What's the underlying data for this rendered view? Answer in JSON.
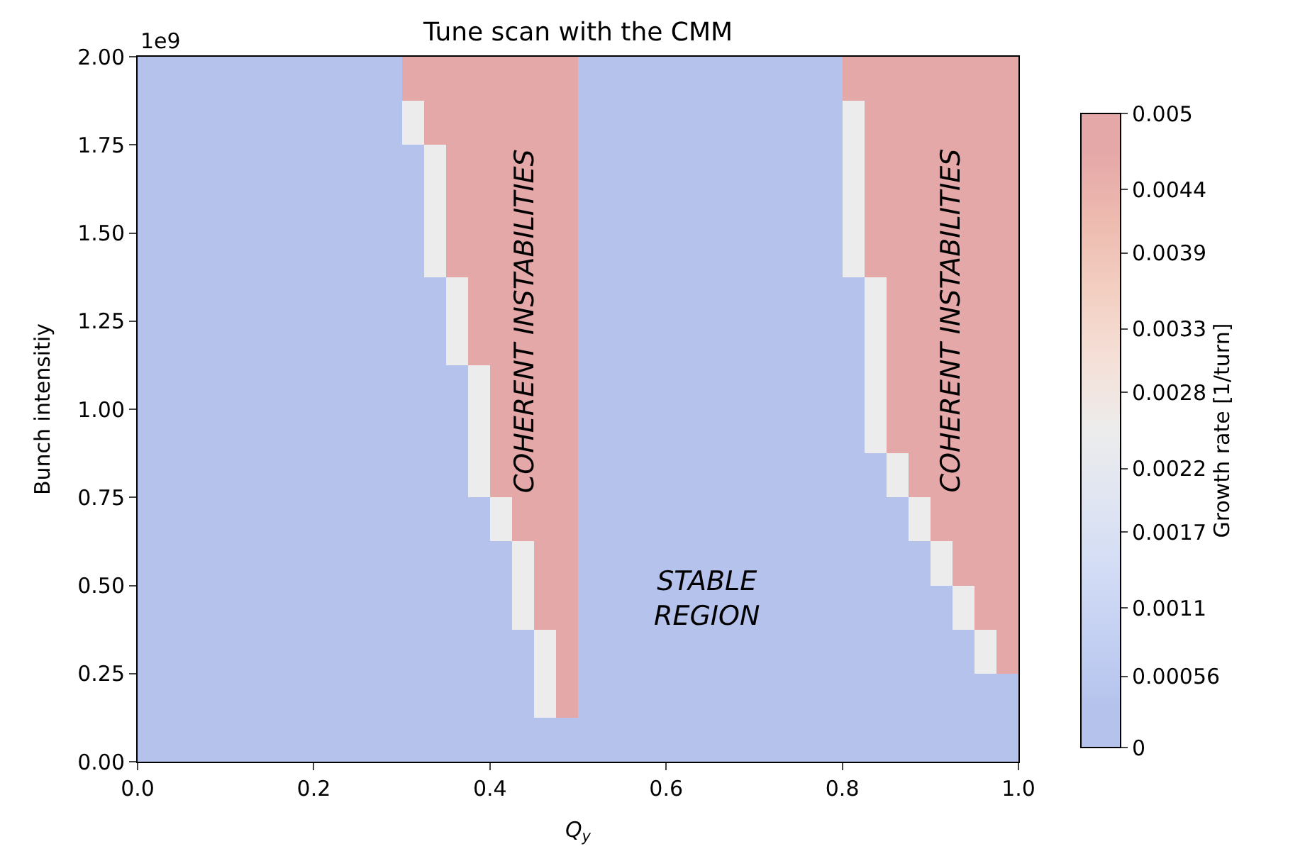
{
  "chart_data": {
    "type": "heatmap",
    "title": "Tune scan with the CMM",
    "xlabel": "Q$_{y}$",
    "ylabel": "Bunch intensitiy",
    "clabel": "Growth rate [1/turn]",
    "x": [
      0.0125,
      0.0375,
      0.0625,
      0.0875,
      0.1125,
      0.1375,
      0.1625,
      0.1875,
      0.2125,
      0.2375,
      0.2625,
      0.2875,
      0.3125,
      0.3375,
      0.3625,
      0.3875,
      0.4125,
      0.4375,
      0.4625,
      0.4875,
      0.5125,
      0.5375,
      0.5625,
      0.5875,
      0.6125,
      0.6375,
      0.6625,
      0.6875,
      0.7125,
      0.7375,
      0.7625,
      0.7875,
      0.8125,
      0.8375,
      0.8625,
      0.8875,
      0.9125,
      0.9375,
      0.9625,
      0.9875
    ],
    "y": [
      1.9375,
      1.8125,
      1.6875,
      1.5625,
      1.4375,
      1.3125,
      1.1875,
      1.0625,
      0.9375,
      0.8125,
      0.6875,
      0.5625,
      0.4375,
      0.3125,
      0.1875,
      0.0625
    ],
    "cells": [
      [
        0.0003,
        0.0003,
        0.0003,
        0.0003,
        0.0003,
        0.0003,
        0.0003,
        0.0003,
        0.0003,
        0.0003,
        0.0003,
        0.0003,
        0.0047,
        0.0047,
        0.0047,
        0.0047,
        0.0047,
        0.0047,
        0.0047,
        0.0047,
        0.0003,
        0.0003,
        0.0003,
        0.0003,
        0.0003,
        0.0003,
        0.0003,
        0.0003,
        0.0003,
        0.0003,
        0.0003,
        0.0003,
        0.0047,
        0.0047,
        0.0047,
        0.0047,
        0.0047,
        0.0047,
        0.0047,
        0.0047
      ],
      [
        0.0003,
        0.0003,
        0.0003,
        0.0003,
        0.0003,
        0.0003,
        0.0003,
        0.0003,
        0.0003,
        0.0003,
        0.0003,
        0.0003,
        0.0025,
        0.0047,
        0.0047,
        0.0047,
        0.0047,
        0.0047,
        0.0047,
        0.0047,
        0.0003,
        0.0003,
        0.0003,
        0.0003,
        0.0003,
        0.0003,
        0.0003,
        0.0003,
        0.0003,
        0.0003,
        0.0003,
        0.0003,
        0.0025,
        0.0047,
        0.0047,
        0.0047,
        0.0047,
        0.0047,
        0.0047,
        0.0047
      ],
      [
        0.0003,
        0.0003,
        0.0003,
        0.0003,
        0.0003,
        0.0003,
        0.0003,
        0.0003,
        0.0003,
        0.0003,
        0.0003,
        0.0003,
        0.0003,
        0.0025,
        0.0047,
        0.0047,
        0.0047,
        0.0047,
        0.0047,
        0.0047,
        0.0003,
        0.0003,
        0.0003,
        0.0003,
        0.0003,
        0.0003,
        0.0003,
        0.0003,
        0.0003,
        0.0003,
        0.0003,
        0.0003,
        0.0025,
        0.0047,
        0.0047,
        0.0047,
        0.0047,
        0.0047,
        0.0047,
        0.0047
      ],
      [
        0.0003,
        0.0003,
        0.0003,
        0.0003,
        0.0003,
        0.0003,
        0.0003,
        0.0003,
        0.0003,
        0.0003,
        0.0003,
        0.0003,
        0.0003,
        0.0025,
        0.0047,
        0.0047,
        0.0047,
        0.0047,
        0.0047,
        0.0047,
        0.0003,
        0.0003,
        0.0003,
        0.0003,
        0.0003,
        0.0003,
        0.0003,
        0.0003,
        0.0003,
        0.0003,
        0.0003,
        0.0003,
        0.0025,
        0.0047,
        0.0047,
        0.0047,
        0.0047,
        0.0047,
        0.0047,
        0.0047
      ],
      [
        0.0003,
        0.0003,
        0.0003,
        0.0003,
        0.0003,
        0.0003,
        0.0003,
        0.0003,
        0.0003,
        0.0003,
        0.0003,
        0.0003,
        0.0003,
        0.0025,
        0.0047,
        0.0047,
        0.0047,
        0.0047,
        0.0047,
        0.0047,
        0.0003,
        0.0003,
        0.0003,
        0.0003,
        0.0003,
        0.0003,
        0.0003,
        0.0003,
        0.0003,
        0.0003,
        0.0003,
        0.0003,
        0.0025,
        0.0047,
        0.0047,
        0.0047,
        0.0047,
        0.0047,
        0.0047,
        0.0047
      ],
      [
        0.0003,
        0.0003,
        0.0003,
        0.0003,
        0.0003,
        0.0003,
        0.0003,
        0.0003,
        0.0003,
        0.0003,
        0.0003,
        0.0003,
        0.0003,
        0.0003,
        0.0025,
        0.0047,
        0.0047,
        0.0047,
        0.0047,
        0.0047,
        0.0003,
        0.0003,
        0.0003,
        0.0003,
        0.0003,
        0.0003,
        0.0003,
        0.0003,
        0.0003,
        0.0003,
        0.0003,
        0.0003,
        0.0003,
        0.0025,
        0.0047,
        0.0047,
        0.0047,
        0.0047,
        0.0047,
        0.0047
      ],
      [
        0.0003,
        0.0003,
        0.0003,
        0.0003,
        0.0003,
        0.0003,
        0.0003,
        0.0003,
        0.0003,
        0.0003,
        0.0003,
        0.0003,
        0.0003,
        0.0003,
        0.0025,
        0.0047,
        0.0047,
        0.0047,
        0.0047,
        0.0047,
        0.0003,
        0.0003,
        0.0003,
        0.0003,
        0.0003,
        0.0003,
        0.0003,
        0.0003,
        0.0003,
        0.0003,
        0.0003,
        0.0003,
        0.0003,
        0.0025,
        0.0047,
        0.0047,
        0.0047,
        0.0047,
        0.0047,
        0.0047
      ],
      [
        0.0003,
        0.0003,
        0.0003,
        0.0003,
        0.0003,
        0.0003,
        0.0003,
        0.0003,
        0.0003,
        0.0003,
        0.0003,
        0.0003,
        0.0003,
        0.0003,
        0.0003,
        0.0025,
        0.0047,
        0.0047,
        0.0047,
        0.0047,
        0.0003,
        0.0003,
        0.0003,
        0.0003,
        0.0003,
        0.0003,
        0.0003,
        0.0003,
        0.0003,
        0.0003,
        0.0003,
        0.0003,
        0.0003,
        0.0025,
        0.0047,
        0.0047,
        0.0047,
        0.0047,
        0.0047,
        0.0047
      ],
      [
        0.0003,
        0.0003,
        0.0003,
        0.0003,
        0.0003,
        0.0003,
        0.0003,
        0.0003,
        0.0003,
        0.0003,
        0.0003,
        0.0003,
        0.0003,
        0.0003,
        0.0003,
        0.0025,
        0.0047,
        0.0047,
        0.0047,
        0.0047,
        0.0003,
        0.0003,
        0.0003,
        0.0003,
        0.0003,
        0.0003,
        0.0003,
        0.0003,
        0.0003,
        0.0003,
        0.0003,
        0.0003,
        0.0003,
        0.0025,
        0.0047,
        0.0047,
        0.0047,
        0.0047,
        0.0047,
        0.0047
      ],
      [
        0.0003,
        0.0003,
        0.0003,
        0.0003,
        0.0003,
        0.0003,
        0.0003,
        0.0003,
        0.0003,
        0.0003,
        0.0003,
        0.0003,
        0.0003,
        0.0003,
        0.0003,
        0.0025,
        0.0047,
        0.0047,
        0.0047,
        0.0047,
        0.0003,
        0.0003,
        0.0003,
        0.0003,
        0.0003,
        0.0003,
        0.0003,
        0.0003,
        0.0003,
        0.0003,
        0.0003,
        0.0003,
        0.0003,
        0.0003,
        0.0025,
        0.0047,
        0.0047,
        0.0047,
        0.0047,
        0.0047
      ],
      [
        0.0003,
        0.0003,
        0.0003,
        0.0003,
        0.0003,
        0.0003,
        0.0003,
        0.0003,
        0.0003,
        0.0003,
        0.0003,
        0.0003,
        0.0003,
        0.0003,
        0.0003,
        0.0003,
        0.0025,
        0.0047,
        0.0047,
        0.0047,
        0.0003,
        0.0003,
        0.0003,
        0.0003,
        0.0003,
        0.0003,
        0.0003,
        0.0003,
        0.0003,
        0.0003,
        0.0003,
        0.0003,
        0.0003,
        0.0003,
        0.0003,
        0.0025,
        0.0047,
        0.0047,
        0.0047,
        0.0047
      ],
      [
        0.0003,
        0.0003,
        0.0003,
        0.0003,
        0.0003,
        0.0003,
        0.0003,
        0.0003,
        0.0003,
        0.0003,
        0.0003,
        0.0003,
        0.0003,
        0.0003,
        0.0003,
        0.0003,
        0.0003,
        0.0025,
        0.0047,
        0.0047,
        0.0003,
        0.0003,
        0.0003,
        0.0003,
        0.0003,
        0.0003,
        0.0003,
        0.0003,
        0.0003,
        0.0003,
        0.0003,
        0.0003,
        0.0003,
        0.0003,
        0.0003,
        0.0003,
        0.0025,
        0.0047,
        0.0047,
        0.0047
      ],
      [
        0.0003,
        0.0003,
        0.0003,
        0.0003,
        0.0003,
        0.0003,
        0.0003,
        0.0003,
        0.0003,
        0.0003,
        0.0003,
        0.0003,
        0.0003,
        0.0003,
        0.0003,
        0.0003,
        0.0003,
        0.0025,
        0.0047,
        0.0047,
        0.0003,
        0.0003,
        0.0003,
        0.0003,
        0.0003,
        0.0003,
        0.0003,
        0.0003,
        0.0003,
        0.0003,
        0.0003,
        0.0003,
        0.0003,
        0.0003,
        0.0003,
        0.0003,
        0.0003,
        0.0025,
        0.0047,
        0.0047
      ],
      [
        0.0003,
        0.0003,
        0.0003,
        0.0003,
        0.0003,
        0.0003,
        0.0003,
        0.0003,
        0.0003,
        0.0003,
        0.0003,
        0.0003,
        0.0003,
        0.0003,
        0.0003,
        0.0003,
        0.0003,
        0.0003,
        0.0025,
        0.0047,
        0.0003,
        0.0003,
        0.0003,
        0.0003,
        0.0003,
        0.0003,
        0.0003,
        0.0003,
        0.0003,
        0.0003,
        0.0003,
        0.0003,
        0.0003,
        0.0003,
        0.0003,
        0.0003,
        0.0003,
        0.0003,
        0.0025,
        0.0047
      ],
      [
        0.0003,
        0.0003,
        0.0003,
        0.0003,
        0.0003,
        0.0003,
        0.0003,
        0.0003,
        0.0003,
        0.0003,
        0.0003,
        0.0003,
        0.0003,
        0.0003,
        0.0003,
        0.0003,
        0.0003,
        0.0003,
        0.0025,
        0.0047,
        0.0003,
        0.0003,
        0.0003,
        0.0003,
        0.0003,
        0.0003,
        0.0003,
        0.0003,
        0.0003,
        0.0003,
        0.0003,
        0.0003,
        0.0003,
        0.0003,
        0.0003,
        0.0003,
        0.0003,
        0.0003,
        0.0003,
        0.0003
      ],
      [
        0.0003,
        0.0003,
        0.0003,
        0.0003,
        0.0003,
        0.0003,
        0.0003,
        0.0003,
        0.0003,
        0.0003,
        0.0003,
        0.0003,
        0.0003,
        0.0003,
        0.0003,
        0.0003,
        0.0003,
        0.0003,
        0.0003,
        0.0003,
        0.0003,
        0.0003,
        0.0003,
        0.0003,
        0.0003,
        0.0003,
        0.0003,
        0.0003,
        0.0003,
        0.0003,
        0.0003,
        0.0003,
        0.0003,
        0.0003,
        0.0003,
        0.0003,
        0.0003,
        0.0003,
        0.0003,
        0.0003
      ]
    ],
    "colors": [
      "#b4c2ec",
      "#c3cff2",
      "#d2dcf5",
      "#e0e5f2",
      "#ececec",
      "#f5e0d8",
      "#f3cfc2",
      "#eebbb0",
      "#e5a8a8"
    ],
    "clim": [
      0,
      0.005
    ],
    "cticks": [
      0,
      0.00056,
      0.0011,
      0.0017,
      0.0022,
      0.0028,
      0.0033,
      0.0039,
      0.0044,
      0.005
    ],
    "xlim": [
      0,
      1
    ],
    "xticks": [
      {
        "value": 0,
        "label": "0.0"
      },
      {
        "value": 0.2,
        "label": "0.2"
      },
      {
        "value": 0.4,
        "label": "0.4"
      },
      {
        "value": 0.6,
        "label": "0.6"
      },
      {
        "value": 0.8,
        "label": "0.8"
      },
      {
        "value": 1,
        "label": "1.0"
      }
    ],
    "ylim": [
      0,
      2
    ],
    "yticks": [
      {
        "value": 0,
        "label": "0.00"
      },
      0.25,
      {
        "value": 0.5,
        "label": "0.50"
      },
      0.75,
      {
        "value": 1,
        "label": "1.00"
      },
      1.25,
      {
        "value": 1.5,
        "label": "1.50"
      },
      1.75,
      {
        "value": 2,
        "label": "2.00"
      }
    ],
    "annotations": [
      "COHERENT INSTABILITIES",
      "COHERENT INSTABILITIES",
      "STABLE\nREGION",
      "1e9"
    ]
  }
}
